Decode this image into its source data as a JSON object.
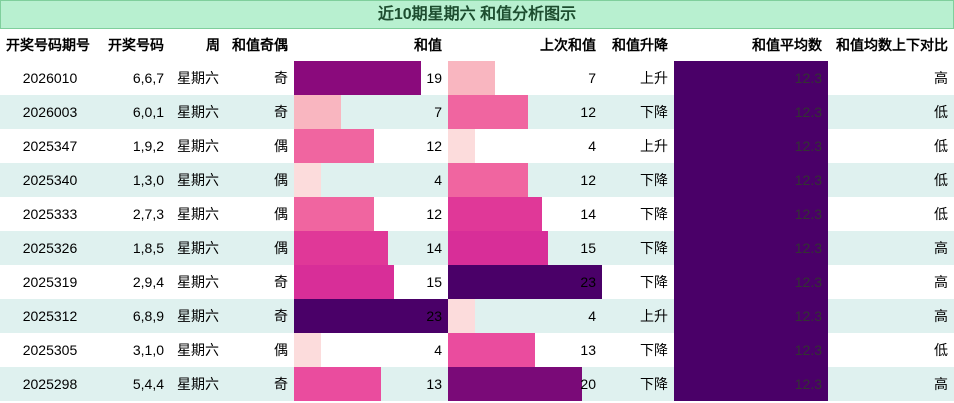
{
  "title": "近10期星期六 和值分析图示",
  "headers": [
    "开奖号码期号",
    "开奖号码",
    "周",
    "和值奇偶",
    "和值",
    "上次和值",
    "和值升降",
    "和值平均数",
    "和值均数上下对比"
  ],
  "rows": [
    {
      "issue": "2026010",
      "numbers": "6,6,7",
      "weekday": "星期六",
      "parity": "奇",
      "sum": 19,
      "prev_sum": 7,
      "trend": "上升",
      "avg": "12.3",
      "compare": "高"
    },
    {
      "issue": "2026003",
      "numbers": "6,0,1",
      "weekday": "星期六",
      "parity": "奇",
      "sum": 7,
      "prev_sum": 12,
      "trend": "下降",
      "avg": "12.3",
      "compare": "低"
    },
    {
      "issue": "2025347",
      "numbers": "1,9,2",
      "weekday": "星期六",
      "parity": "偶",
      "sum": 12,
      "prev_sum": 4,
      "trend": "上升",
      "avg": "12.3",
      "compare": "低"
    },
    {
      "issue": "2025340",
      "numbers": "1,3,0",
      "weekday": "星期六",
      "parity": "偶",
      "sum": 4,
      "prev_sum": 12,
      "trend": "下降",
      "avg": "12.3",
      "compare": "低"
    },
    {
      "issue": "2025333",
      "numbers": "2,7,3",
      "weekday": "星期六",
      "parity": "偶",
      "sum": 12,
      "prev_sum": 14,
      "trend": "下降",
      "avg": "12.3",
      "compare": "低"
    },
    {
      "issue": "2025326",
      "numbers": "1,8,5",
      "weekday": "星期六",
      "parity": "偶",
      "sum": 14,
      "prev_sum": 15,
      "trend": "下降",
      "avg": "12.3",
      "compare": "高"
    },
    {
      "issue": "2025319",
      "numbers": "2,9,4",
      "weekday": "星期六",
      "parity": "奇",
      "sum": 15,
      "prev_sum": 23,
      "trend": "下降",
      "avg": "12.3",
      "compare": "高"
    },
    {
      "issue": "2025312",
      "numbers": "6,8,9",
      "weekday": "星期六",
      "parity": "奇",
      "sum": 23,
      "prev_sum": 4,
      "trend": "上升",
      "avg": "12.3",
      "compare": "高"
    },
    {
      "issue": "2025305",
      "numbers": "3,1,0",
      "weekday": "星期六",
      "parity": "偶",
      "sum": 4,
      "prev_sum": 13,
      "trend": "下降",
      "avg": "12.3",
      "compare": "低"
    },
    {
      "issue": "2025298",
      "numbers": "5,4,4",
      "weekday": "星期六",
      "parity": "奇",
      "sum": 13,
      "prev_sum": 20,
      "trend": "下降",
      "avg": "12.3",
      "compare": "高"
    }
  ],
  "bar_scale_max": 23,
  "colors": {
    "4": "#fcdcdc",
    "7": "#f9b6c0",
    "12": "#f065a0",
    "13": "#ea4c9e",
    "14": "#e03898",
    "15": "#d82e98",
    "19": "#8a0a7c",
    "20": "#7a0a78",
    "23": "#4a0068",
    "avg": "#4a0068"
  }
}
